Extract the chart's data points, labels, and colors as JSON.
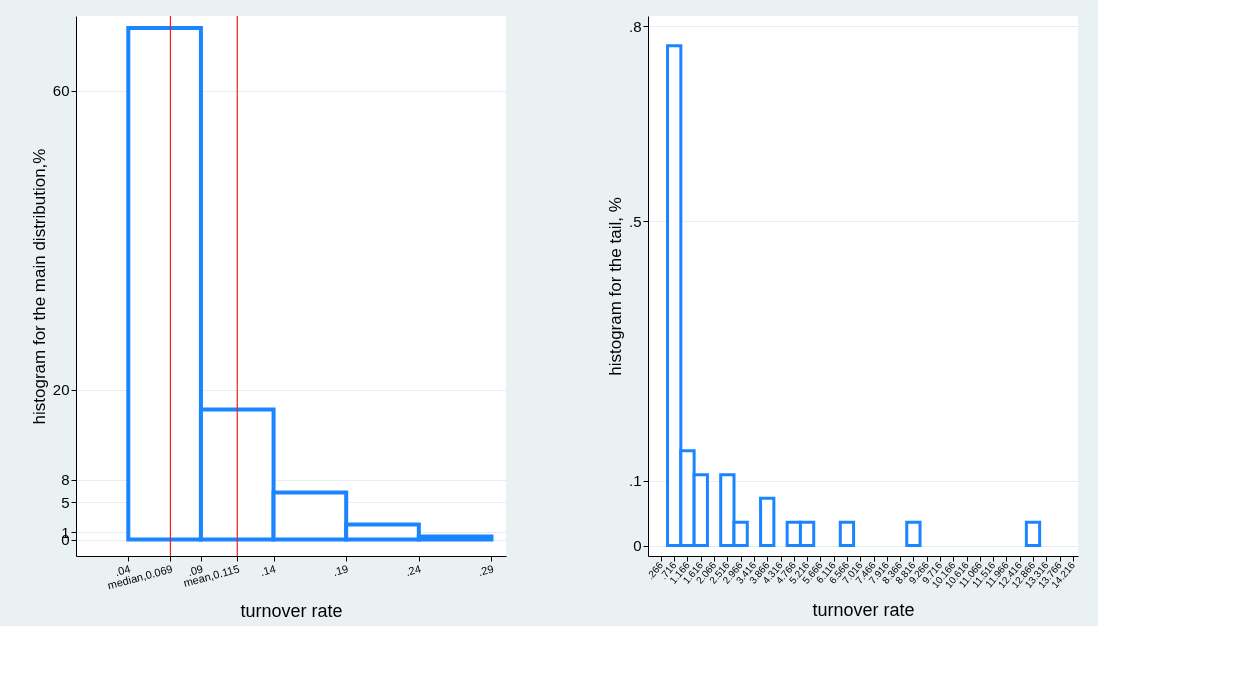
{
  "chart_data": [
    {
      "type": "histogram",
      "xlabel": "turnover rate",
      "ylabel": "histogram for the main distribution,%",
      "bins": [
        0.04,
        0.09,
        0.14,
        0.19,
        0.24,
        0.29
      ],
      "values": [
        68.4,
        17.4,
        6.3,
        2.0,
        0.4
      ],
      "color": "#1a85ff",
      "xlim": [
        0.004,
        0.3
      ],
      "xticks": [
        {
          "value": 0.04,
          "label": ".04"
        },
        {
          "value": 0.069,
          "label": "median,0.069"
        },
        {
          "value": 0.09,
          "label": ".09"
        },
        {
          "value": 0.115,
          "label": "mean,0.115"
        },
        {
          "value": 0.14,
          "label": ".14"
        },
        {
          "value": 0.19,
          "label": ".19"
        },
        {
          "value": 0.24,
          "label": ".24"
        },
        {
          "value": 0.29,
          "label": ".29"
        }
      ],
      "ylim": [
        -2.2,
        70
      ],
      "yticks": [
        0,
        1,
        5,
        8,
        20,
        60
      ],
      "ref_lines": [
        {
          "axis": "x",
          "value": 0.069,
          "color": "#e8231f"
        },
        {
          "axis": "x",
          "value": 0.115,
          "color": "#e8231f"
        }
      ],
      "grid": "y"
    },
    {
      "type": "histogram",
      "xlabel": "turnover rate",
      "ylabel": "histogram for the tail, %",
      "bins": [
        0.491,
        0.941,
        1.391,
        1.841,
        2.291,
        2.741,
        3.191,
        3.641,
        4.091,
        4.541,
        4.991,
        5.441,
        5.891,
        6.341,
        6.791,
        7.241,
        7.691,
        8.141,
        8.591,
        9.041,
        9.491,
        9.941,
        10.391,
        10.841,
        11.291,
        11.741,
        12.191,
        12.641,
        13.091
      ],
      "values": [
        0.77,
        0.146,
        0.109,
        0,
        0.109,
        0.036,
        0,
        0.073,
        0,
        0.036,
        0.036,
        0,
        0,
        0.036,
        0,
        0,
        0,
        0,
        0.036,
        0,
        0,
        0,
        0,
        0,
        0,
        0,
        0,
        0.036
      ],
      "color": "#1a85ff",
      "xlim": [
        -0.171,
        14.39
      ],
      "xticks": [
        {
          "value": 0.266,
          "label": ".266"
        },
        {
          "value": 0.716,
          "label": ".716"
        },
        1.166,
        1.616,
        2.066,
        2.516,
        2.966,
        3.416,
        3.866,
        4.316,
        4.766,
        5.216,
        5.666,
        6.116,
        6.566,
        7.016,
        7.466,
        7.916,
        8.366,
        8.816,
        9.266,
        9.716,
        10.166,
        10.616,
        11.066,
        11.516,
        11.966,
        12.416,
        12.866,
        13.316,
        13.766,
        14.216
      ],
      "ylim": [
        -0.016,
        0.816
      ],
      "yticks": [
        0,
        {
          "value": 0.1,
          "label": ".1"
        },
        {
          "value": 0.5,
          "label": ".5"
        },
        {
          "value": 0.8,
          "label": ".8"
        }
      ],
      "grid": "y"
    }
  ]
}
